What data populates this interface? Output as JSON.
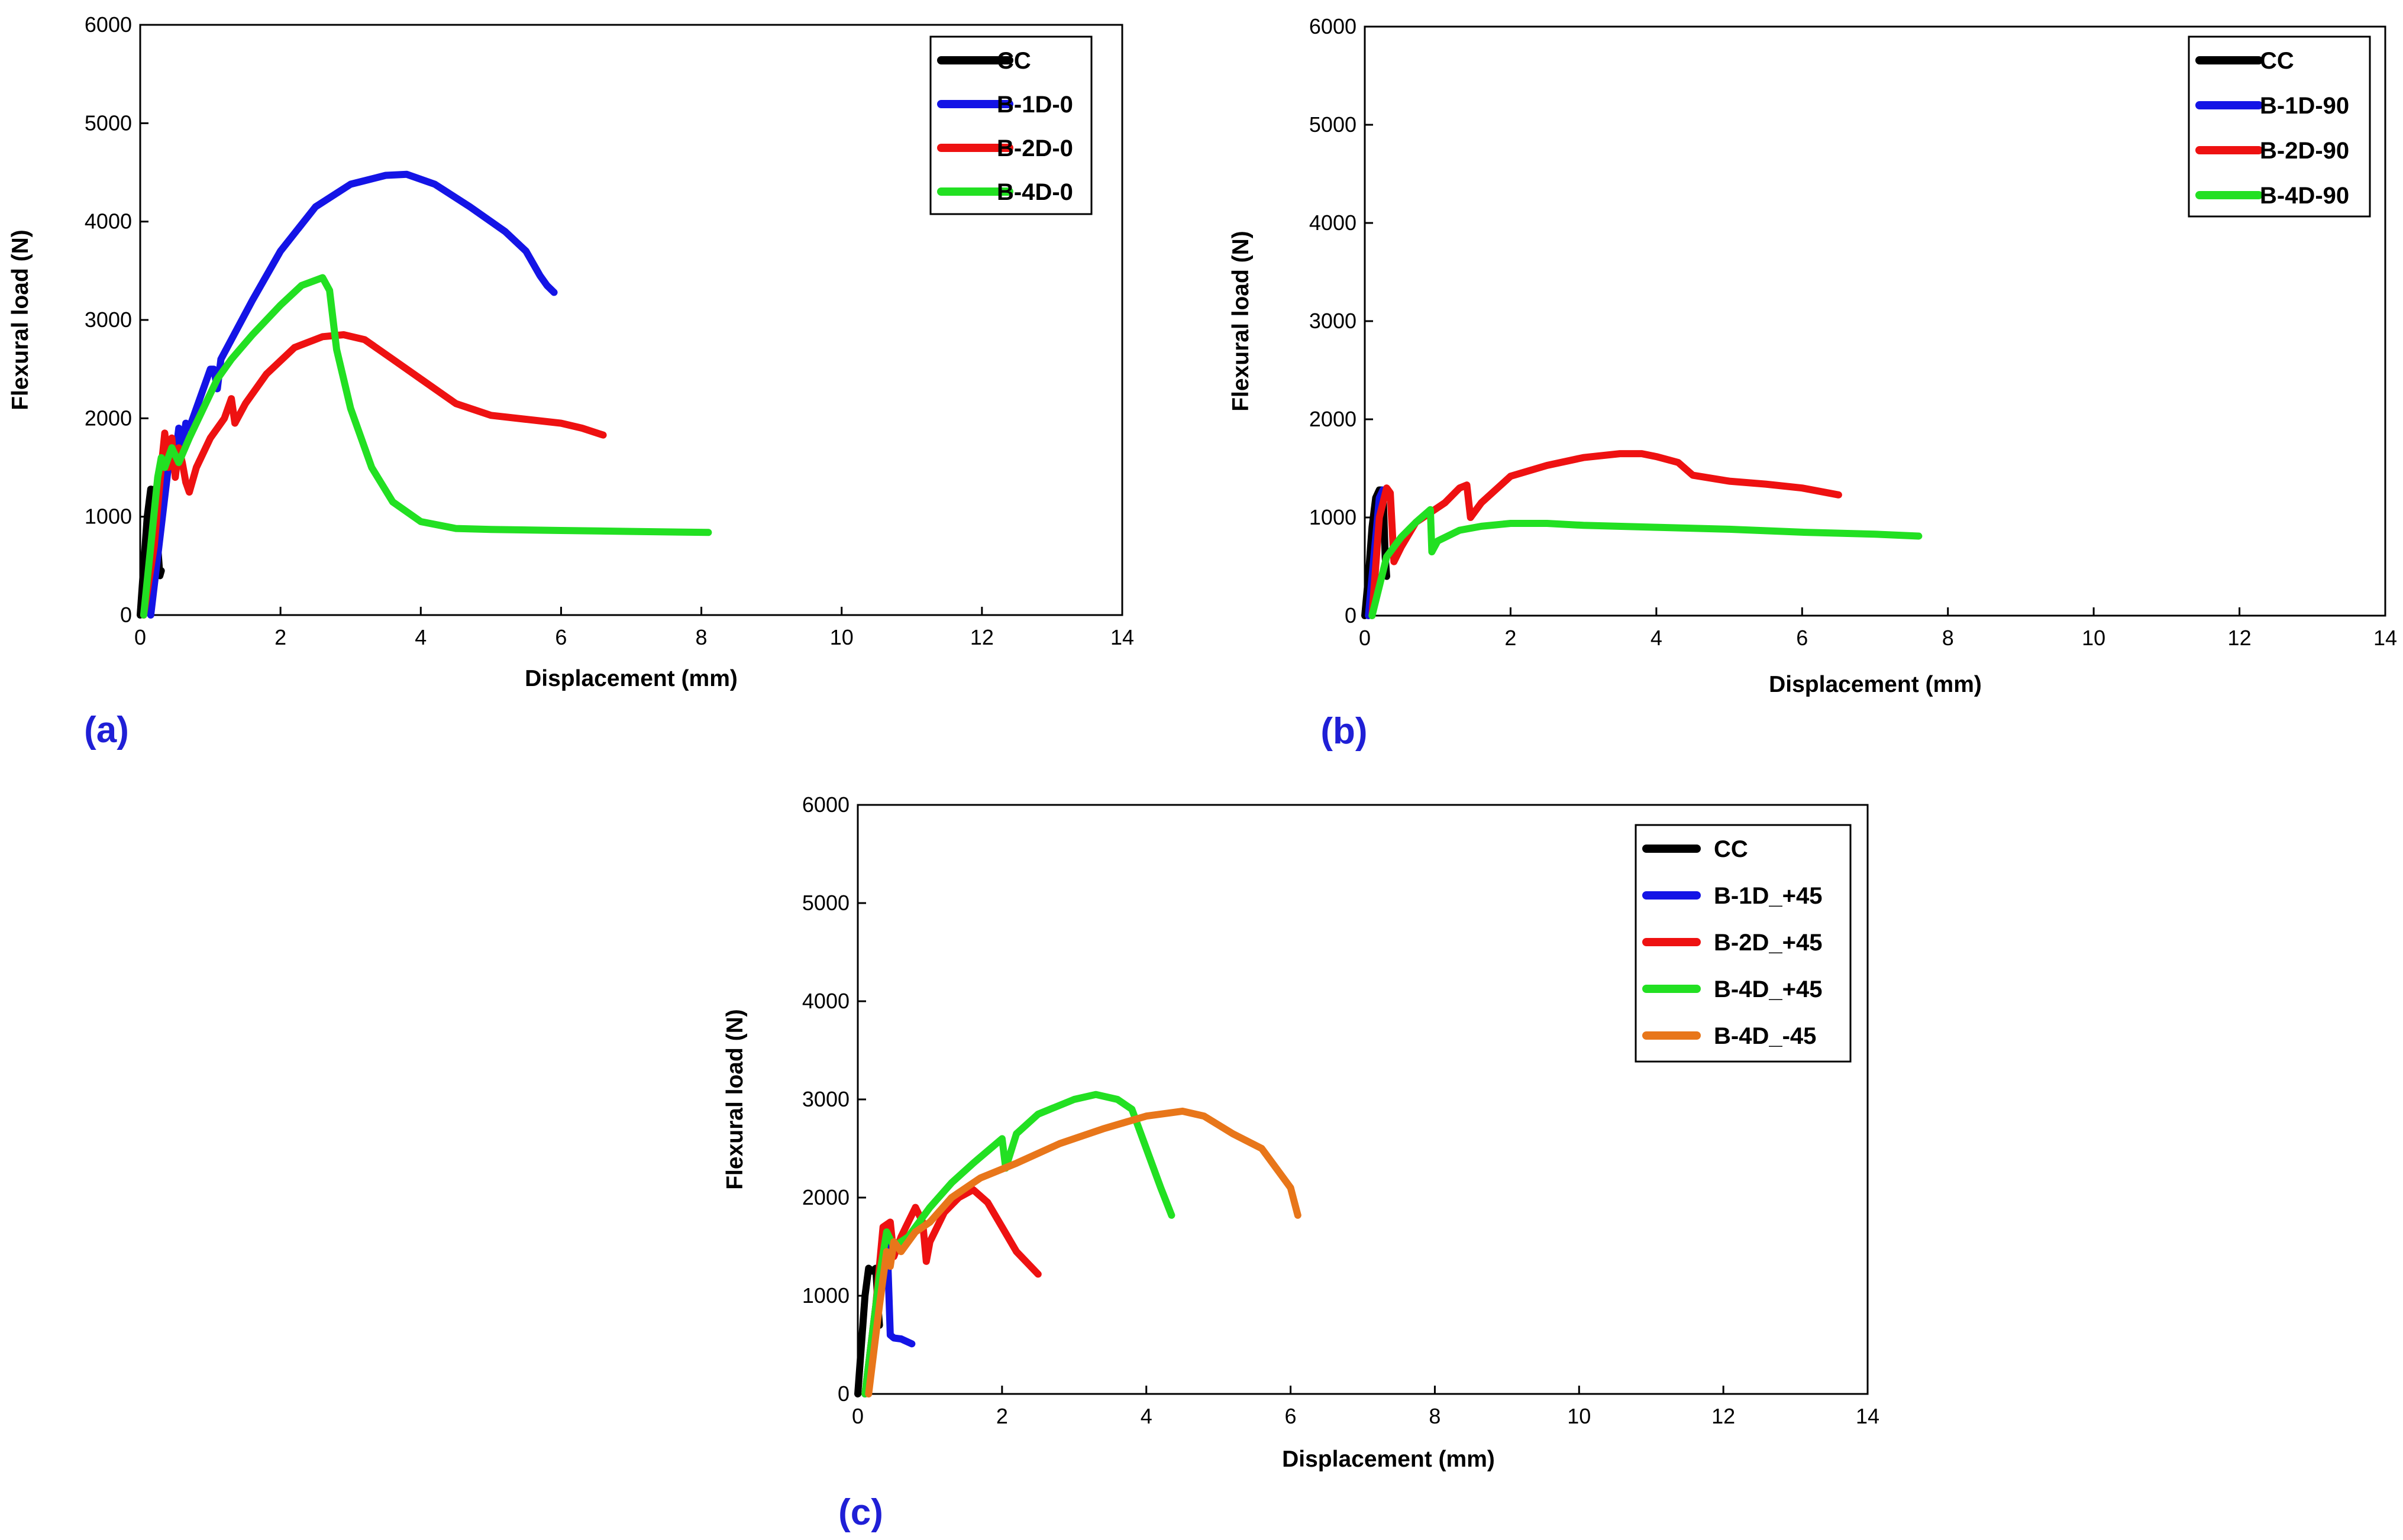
{
  "chart_data": [
    {
      "type": "line",
      "panel_label": "(a)",
      "xlabel": "Displacement (mm)",
      "ylabel": "Flexural load (N)",
      "xlim": [
        0,
        14
      ],
      "ylim": [
        0,
        6000
      ],
      "xticks": [
        0,
        2,
        4,
        6,
        8,
        10,
        12,
        14
      ],
      "yticks": [
        0,
        1000,
        2000,
        3000,
        4000,
        5000,
        6000
      ],
      "legend_position": "top-right",
      "series": [
        {
          "name": "CC",
          "color": "#000000",
          "x": [
            0.0,
            0.05,
            0.1,
            0.15,
            0.18,
            0.2,
            0.25,
            0.28,
            0.3
          ],
          "y": [
            0,
            500,
            1000,
            1280,
            1250,
            1280,
            700,
            400,
            450
          ]
        },
        {
          "name": "B-1D-0",
          "color": "#1414e6",
          "x": [
            0.15,
            0.3,
            0.4,
            0.45,
            0.5,
            0.55,
            0.6,
            0.65,
            0.7,
            0.8,
            1.0,
            1.05,
            1.1,
            1.15,
            1.3,
            1.6,
            2.0,
            2.5,
            3.0,
            3.5,
            3.8,
            4.2,
            4.7,
            5.2,
            5.5,
            5.7,
            5.8,
            5.9
          ],
          "y": [
            0,
            900,
            1500,
            1750,
            1600,
            1900,
            1700,
            1950,
            1900,
            2100,
            2500,
            2500,
            2300,
            2600,
            2800,
            3200,
            3700,
            4150,
            4380,
            4470,
            4480,
            4380,
            4150,
            3900,
            3700,
            3450,
            3350,
            3280
          ]
        },
        {
          "name": "B-2D-0",
          "color": "#ee1111",
          "x": [
            0.05,
            0.2,
            0.3,
            0.35,
            0.4,
            0.45,
            0.5,
            0.55,
            0.6,
            0.65,
            0.7,
            0.8,
            1.0,
            1.2,
            1.3,
            1.35,
            1.5,
            1.8,
            2.2,
            2.6,
            2.9,
            3.2,
            3.6,
            4.0,
            4.5,
            5.0,
            5.5,
            6.0,
            6.3,
            6.6
          ],
          "y": [
            0,
            700,
            1500,
            1850,
            1500,
            1800,
            1400,
            1700,
            1550,
            1350,
            1250,
            1500,
            1800,
            2000,
            2200,
            1950,
            2150,
            2450,
            2720,
            2830,
            2850,
            2800,
            2600,
            2400,
            2150,
            2030,
            1990,
            1950,
            1900,
            1830
          ]
        },
        {
          "name": "B-4D-0",
          "color": "#22e022",
          "x": [
            0.05,
            0.15,
            0.25,
            0.3,
            0.35,
            0.45,
            0.55,
            0.7,
            0.9,
            1.1,
            1.3,
            1.6,
            2.0,
            2.3,
            2.6,
            2.7,
            2.8,
            3.0,
            3.3,
            3.6,
            4.0,
            4.5,
            5.0,
            6.0,
            7.0,
            8.1
          ],
          "y": [
            0,
            700,
            1400,
            1600,
            1500,
            1700,
            1550,
            1800,
            2100,
            2400,
            2600,
            2850,
            3150,
            3350,
            3430,
            3300,
            2700,
            2100,
            1500,
            1150,
            950,
            880,
            870,
            860,
            850,
            840
          ]
        }
      ]
    },
    {
      "type": "line",
      "panel_label": "(b)",
      "xlabel": "Displacement (mm)",
      "ylabel": "Flexural load (N)",
      "xlim": [
        0,
        14
      ],
      "ylim": [
        0,
        6000
      ],
      "xticks": [
        0,
        2,
        4,
        6,
        8,
        10,
        12,
        14
      ],
      "yticks": [
        0,
        1000,
        2000,
        3000,
        4000,
        5000,
        6000
      ],
      "legend_position": "top-right",
      "series": [
        {
          "name": "CC",
          "color": "#000000",
          "x": [
            0.0,
            0.05,
            0.1,
            0.15,
            0.2,
            0.25,
            0.28,
            0.3
          ],
          "y": [
            0,
            400,
            900,
            1200,
            1280,
            1280,
            600,
            400
          ]
        },
        {
          "name": "B-1D-90",
          "color": "#1414e6",
          "x": [
            0.05,
            0.15,
            0.2,
            0.25,
            0.3
          ],
          "y": [
            0,
            800,
            1200,
            1280,
            1250
          ]
        },
        {
          "name": "B-2D-90",
          "color": "#ee1111",
          "x": [
            0.1,
            0.2,
            0.3,
            0.35,
            0.4,
            0.5,
            0.7,
            0.9,
            1.1,
            1.3,
            1.4,
            1.45,
            1.6,
            2.0,
            2.5,
            3.0,
            3.5,
            3.8,
            4.0,
            4.3,
            4.5,
            5.0,
            5.5,
            6.0,
            6.5
          ],
          "y": [
            0,
            1000,
            1300,
            1250,
            550,
            700,
            950,
            1050,
            1150,
            1300,
            1330,
            1000,
            1150,
            1420,
            1530,
            1610,
            1650,
            1650,
            1620,
            1560,
            1430,
            1370,
            1340,
            1300,
            1230
          ]
        },
        {
          "name": "B-4D-90",
          "color": "#22e022",
          "x": [
            0.1,
            0.3,
            0.5,
            0.7,
            0.9,
            0.92,
            1.0,
            1.3,
            1.6,
            2.0,
            2.5,
            3.0,
            4.0,
            5.0,
            6.0,
            7.0,
            7.6
          ],
          "y": [
            0,
            600,
            800,
            950,
            1080,
            650,
            760,
            870,
            910,
            940,
            940,
            920,
            900,
            880,
            850,
            830,
            810
          ]
        }
      ]
    },
    {
      "type": "line",
      "panel_label": "(c)",
      "xlabel": "Displacement (mm)",
      "ylabel": "Flexural load (N)",
      "xlim": [
        0,
        14
      ],
      "ylim": [
        0,
        6000
      ],
      "xticks": [
        0,
        2,
        4,
        6,
        8,
        10,
        12,
        14
      ],
      "yticks": [
        0,
        1000,
        2000,
        3000,
        4000,
        5000,
        6000
      ],
      "legend_position": "top-right",
      "series": [
        {
          "name": "CC",
          "color": "#000000",
          "x": [
            0.0,
            0.05,
            0.1,
            0.15,
            0.2,
            0.25,
            0.28,
            0.3
          ],
          "y": [
            0,
            500,
            1000,
            1280,
            1250,
            1280,
            900,
            700
          ]
        },
        {
          "name": "B-1D_+45",
          "color": "#1414e6",
          "x": [
            0.1,
            0.25,
            0.35,
            0.4,
            0.45,
            0.5,
            0.6,
            0.75
          ],
          "y": [
            0,
            900,
            1600,
            1700,
            600,
            570,
            560,
            510
          ]
        },
        {
          "name": "B-2D_+45",
          "color": "#ee1111",
          "x": [
            0.1,
            0.25,
            0.35,
            0.45,
            0.5,
            0.6,
            0.7,
            0.8,
            0.9,
            0.95,
            1.0,
            1.2,
            1.4,
            1.6,
            1.8,
            2.0,
            2.2,
            2.5
          ],
          "y": [
            0,
            900,
            1700,
            1750,
            1400,
            1600,
            1750,
            1900,
            1750,
            1350,
            1550,
            1850,
            2000,
            2080,
            1950,
            1700,
            1450,
            1220
          ]
        },
        {
          "name": "B-4D_+45",
          "color": "#22e022",
          "x": [
            0.1,
            0.3,
            0.4,
            0.5,
            0.7,
            1.0,
            1.3,
            1.6,
            2.0,
            2.05,
            2.2,
            2.5,
            3.0,
            3.3,
            3.6,
            3.8,
            4.0,
            4.2,
            4.35
          ],
          "y": [
            0,
            1200,
            1650,
            1500,
            1600,
            1900,
            2150,
            2350,
            2600,
            2300,
            2650,
            2850,
            3000,
            3050,
            3000,
            2900,
            2500,
            2100,
            1820
          ]
        },
        {
          "name": "B-4D_-45",
          "color": "#e8761a",
          "x": [
            0.15,
            0.3,
            0.4,
            0.45,
            0.5,
            0.6,
            0.8,
            1.0,
            1.3,
            1.7,
            2.2,
            2.8,
            3.4,
            4.0,
            4.5,
            4.8,
            5.2,
            5.6,
            5.8,
            6.0,
            6.1
          ],
          "y": [
            0,
            900,
            1450,
            1300,
            1550,
            1450,
            1650,
            1750,
            2000,
            2200,
            2350,
            2550,
            2700,
            2830,
            2880,
            2830,
            2650,
            2500,
            2300,
            2100,
            1820
          ]
        }
      ]
    }
  ]
}
